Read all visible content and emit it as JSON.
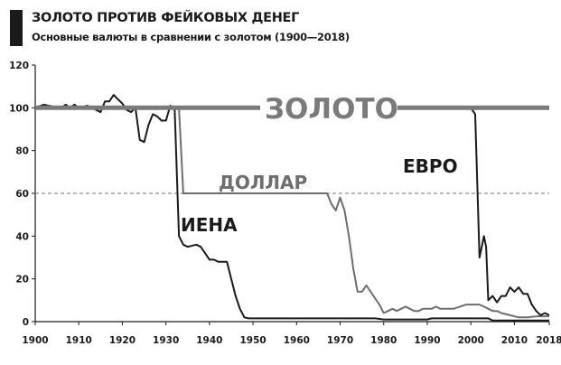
{
  "chart_data": {
    "type": "line",
    "title": "ЗОЛОТО ПРОТИВ ФЕЙКОВЫХ ДЕНЕГ",
    "subtitle": "Основные валюты в сравнении с золотом (1900—2018)",
    "xlim": [
      1900,
      2018
    ],
    "ylim": [
      0,
      120
    ],
    "xticks": [
      1900,
      1910,
      1920,
      1930,
      1940,
      1950,
      1960,
      1970,
      1980,
      1990,
      2000,
      2010,
      2018
    ],
    "yticks": [
      0,
      20,
      40,
      60,
      80,
      100,
      120
    ],
    "reference_line": {
      "y": 60,
      "style": "dashed"
    },
    "grid": false,
    "colors": {
      "gold": "#7a7a7a",
      "dollar": "#6e6e6e",
      "yen": "#1a1a1a",
      "euro": "#1a1a1a"
    },
    "series": [
      {
        "name": "ЗОЛОТО",
        "x": [
          1900,
          2018
        ],
        "y": [
          100,
          100
        ]
      },
      {
        "name": "ДОЛЛАР",
        "x": [
          1900,
          1933,
          1934,
          1967,
          1968,
          1969,
          1970,
          1971,
          1972,
          1973,
          1974,
          1975,
          1976,
          1977,
          1978,
          1979,
          1980,
          1981,
          1982,
          1983,
          1984,
          1985,
          1986,
          1987,
          1988,
          1989,
          1991,
          1992,
          1993,
          1996,
          1999,
          2002,
          2003,
          2005,
          2006,
          2007,
          2009,
          2011,
          2013,
          2015,
          2018
        ],
        "y": [
          100,
          100,
          60,
          60,
          55,
          52,
          58,
          52,
          40,
          25,
          14,
          14,
          17,
          14,
          11,
          8,
          4,
          5,
          6,
          5,
          6,
          7,
          6,
          5,
          5,
          6,
          6,
          7,
          6,
          6,
          8,
          8,
          7,
          5,
          5,
          4,
          3,
          2,
          2,
          2.5,
          2.5
        ]
      },
      {
        "name": "ИЕНА",
        "x": [
          1900,
          1902,
          1903,
          1906,
          1907,
          1908,
          1909,
          1910,
          1912,
          1913,
          1914,
          1915,
          1916,
          1917,
          1918,
          1919,
          1920,
          1921,
          1922,
          1923,
          1924,
          1925,
          1926,
          1927,
          1928,
          1929,
          1930,
          1931,
          1932,
          1933,
          1934,
          1935,
          1937,
          1938,
          1939,
          1940,
          1941,
          1942,
          1944,
          1945,
          1946,
          1947,
          1948,
          1949,
          1978,
          1980,
          1990,
          1991,
          2004,
          2005,
          2018
        ],
        "y": [
          100,
          101.5,
          101,
          100,
          101.5,
          100,
          101.5,
          100,
          101,
          100,
          99,
          98,
          103,
          103,
          106,
          104,
          102,
          99,
          98,
          100,
          85,
          84,
          92,
          97,
          96,
          94,
          94,
          101,
          100,
          40,
          36,
          35,
          36,
          35,
          32,
          29,
          29,
          28,
          28,
          20,
          12,
          6,
          2,
          1.5,
          1.5,
          1,
          1,
          1.5,
          1.5,
          0.5,
          0.5
        ]
      },
      {
        "name": "ЕВРО",
        "x": [
          1999,
          2000,
          2001,
          2002,
          2003,
          2003.5,
          2004,
          2005,
          2006,
          2007,
          2008,
          2009,
          2010,
          2011,
          2012,
          2013,
          2014,
          2015,
          2016,
          2017,
          2018
        ],
        "y": [
          100,
          100,
          97,
          30,
          40,
          35,
          10,
          12,
          9,
          12,
          12,
          16,
          14,
          16,
          13,
          13,
          8,
          5,
          3,
          4,
          3
        ]
      }
    ],
    "labels": {
      "gold": "ЗОЛОТО",
      "dollar": "ДОЛЛАР",
      "yen": "ИЕНА",
      "euro": "ЕВРО"
    }
  }
}
